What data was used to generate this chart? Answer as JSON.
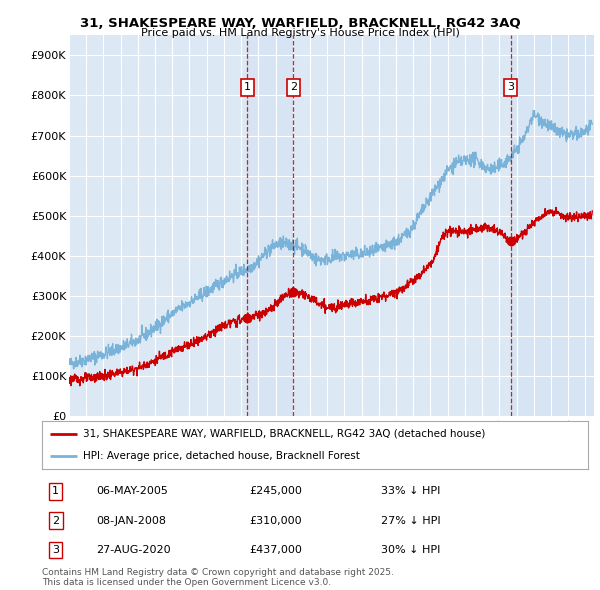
{
  "title": "31, SHAKESPEARE WAY, WARFIELD, BRACKNELL, RG42 3AQ",
  "subtitle": "Price paid vs. HM Land Registry's House Price Index (HPI)",
  "background_color": "#ffffff",
  "plot_bg_color": "#dce9f5",
  "grid_color": "#ffffff",
  "hpi_color": "#7ab3d9",
  "price_color": "#cc0000",
  "ylabel_values": [
    "£0",
    "£100K",
    "£200K",
    "£300K",
    "£400K",
    "£500K",
    "£600K",
    "£700K",
    "£800K",
    "£900K"
  ],
  "ylim": [
    0,
    950000
  ],
  "xlim_start": 1995.0,
  "xlim_end": 2025.5,
  "transactions": [
    {
      "date": 2005.35,
      "price": 245000,
      "label": "1"
    },
    {
      "date": 2008.03,
      "price": 310000,
      "label": "2"
    },
    {
      "date": 2020.66,
      "price": 437000,
      "label": "3"
    }
  ],
  "transaction_table": [
    {
      "num": "1",
      "date": "06-MAY-2005",
      "price": "£245,000",
      "note": "33% ↓ HPI"
    },
    {
      "num": "2",
      "date": "08-JAN-2008",
      "price": "£310,000",
      "note": "27% ↓ HPI"
    },
    {
      "num": "3",
      "date": "27-AUG-2020",
      "price": "£437,000",
      "note": "30% ↓ HPI"
    }
  ],
  "legend_line1": "31, SHAKESPEARE WAY, WARFIELD, BRACKNELL, RG42 3AQ (detached house)",
  "legend_line2": "HPI: Average price, detached house, Bracknell Forest",
  "footer": "Contains HM Land Registry data © Crown copyright and database right 2025.\nThis data is licensed under the Open Government Licence v3.0."
}
